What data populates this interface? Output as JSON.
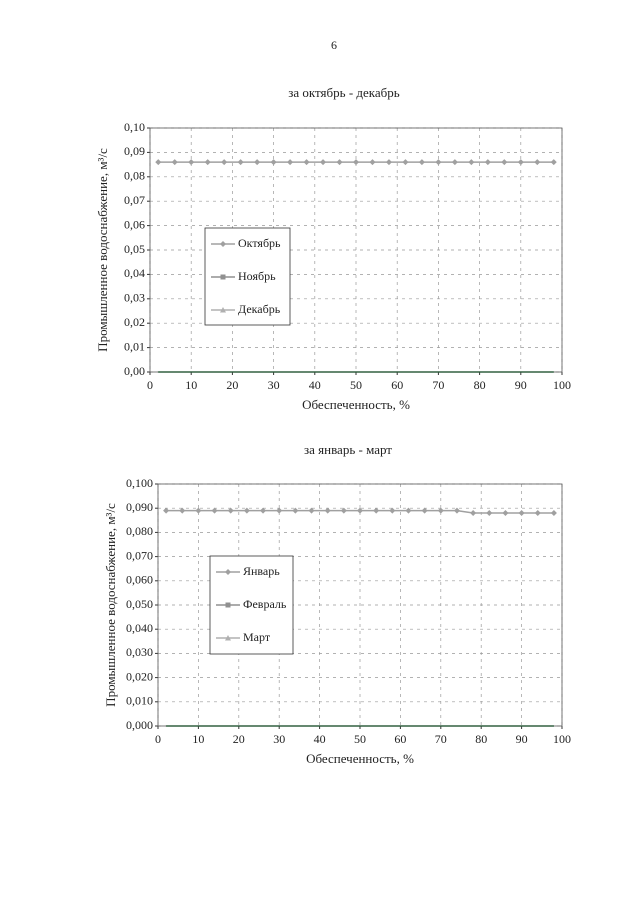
{
  "page_number": "6",
  "chart_data": [
    {
      "type": "line",
      "title": "за октябрь - декабрь",
      "xlabel": "Обеспеченность, %",
      "ylabel": "Промышленное водоснабжение, м³/с",
      "x": [
        2,
        6,
        10,
        14,
        18,
        22,
        26,
        30,
        34,
        38,
        42,
        46,
        50,
        54,
        58,
        62,
        66,
        70,
        74,
        78,
        82,
        86,
        90,
        94,
        98
      ],
      "series": [
        {
          "name": "Октябрь",
          "color": "#a0a0a0",
          "marker": "diamond",
          "values": [
            0.086,
            0.086,
            0.086,
            0.086,
            0.086,
            0.086,
            0.086,
            0.086,
            0.086,
            0.086,
            0.086,
            0.086,
            0.086,
            0.086,
            0.086,
            0.086,
            0.086,
            0.086,
            0.086,
            0.086,
            0.086,
            0.086,
            0.086,
            0.086,
            0.086
          ]
        },
        {
          "name": "Ноябрь",
          "color": "#909090",
          "marker": "square",
          "values": [
            0,
            0,
            0,
            0,
            0,
            0,
            0,
            0,
            0,
            0,
            0,
            0,
            0,
            0,
            0,
            0,
            0,
            0,
            0,
            0,
            0,
            0,
            0,
            0,
            0
          ]
        },
        {
          "name": "Декабрь",
          "color": "#b0b0b0",
          "marker": "triangle",
          "values": [
            0,
            0,
            0,
            0,
            0,
            0,
            0,
            0,
            0,
            0,
            0,
            0,
            0,
            0,
            0,
            0,
            0,
            0,
            0,
            0,
            0,
            0,
            0,
            0,
            0
          ]
        }
      ],
      "xlim": [
        0,
        100
      ],
      "xticks": [
        0,
        10,
        20,
        30,
        40,
        50,
        60,
        70,
        80,
        90,
        100
      ],
      "ylim": [
        0,
        0.1
      ],
      "yticks": [
        {
          "value": 0,
          "label": "0,00"
        },
        {
          "value": 0.01,
          "label": "0,01"
        },
        {
          "value": 0.02,
          "label": "0,02"
        },
        {
          "value": 0.03,
          "label": "0,03"
        },
        {
          "value": 0.04,
          "label": "0,04"
        },
        {
          "value": 0.05,
          "label": "0,05"
        },
        {
          "value": 0.06,
          "label": "0,06"
        },
        {
          "value": 0.07,
          "label": "0,07"
        },
        {
          "value": 0.08,
          "label": "0,08"
        },
        {
          "value": 0.09,
          "label": "0,09"
        },
        {
          "value": 0.1,
          "label": "0,10"
        }
      ],
      "grid": true
    },
    {
      "type": "line",
      "title": "за январь - март",
      "xlabel": "Обеспеченность, %",
      "ylabel": "Промышленное водоснабжение, м³/с",
      "x": [
        2,
        6,
        10,
        14,
        18,
        22,
        26,
        30,
        34,
        38,
        42,
        46,
        50,
        54,
        58,
        62,
        66,
        70,
        74,
        78,
        82,
        86,
        90,
        94,
        98
      ],
      "series": [
        {
          "name": "Январь",
          "color": "#a0a0a0",
          "marker": "diamond",
          "values": [
            0.089,
            0.089,
            0.089,
            0.089,
            0.089,
            0.089,
            0.089,
            0.089,
            0.089,
            0.089,
            0.089,
            0.089,
            0.089,
            0.089,
            0.089,
            0.089,
            0.089,
            0.089,
            0.089,
            0.088,
            0.088,
            0.088,
            0.088,
            0.088,
            0.088
          ]
        },
        {
          "name": "Февраль",
          "color": "#909090",
          "marker": "square",
          "values": [
            0,
            0,
            0,
            0,
            0,
            0,
            0,
            0,
            0,
            0,
            0,
            0,
            0,
            0,
            0,
            0,
            0,
            0,
            0,
            0,
            0,
            0,
            0,
            0,
            0
          ]
        },
        {
          "name": "Март",
          "color": "#b0b0b0",
          "marker": "triangle",
          "values": [
            0,
            0,
            0,
            0,
            0,
            0,
            0,
            0,
            0,
            0,
            0,
            0,
            0,
            0,
            0,
            0,
            0,
            0,
            0,
            0,
            0,
            0,
            0,
            0,
            0
          ]
        }
      ],
      "xlim": [
        0,
        100
      ],
      "xticks": [
        0,
        10,
        20,
        30,
        40,
        50,
        60,
        70,
        80,
        90,
        100
      ],
      "ylim": [
        0,
        0.1
      ],
      "yticks": [
        {
          "value": 0,
          "label": "0,000"
        },
        {
          "value": 0.01,
          "label": "0,010"
        },
        {
          "value": 0.02,
          "label": "0,020"
        },
        {
          "value": 0.03,
          "label": "0,030"
        },
        {
          "value": 0.04,
          "label": "0,040"
        },
        {
          "value": 0.05,
          "label": "0,050"
        },
        {
          "value": 0.06,
          "label": "0,060"
        },
        {
          "value": 0.07,
          "label": "0,070"
        },
        {
          "value": 0.08,
          "label": "0,080"
        },
        {
          "value": 0.09,
          "label": "0,090"
        },
        {
          "value": 0.1,
          "label": "0,100"
        }
      ],
      "grid": true
    }
  ]
}
